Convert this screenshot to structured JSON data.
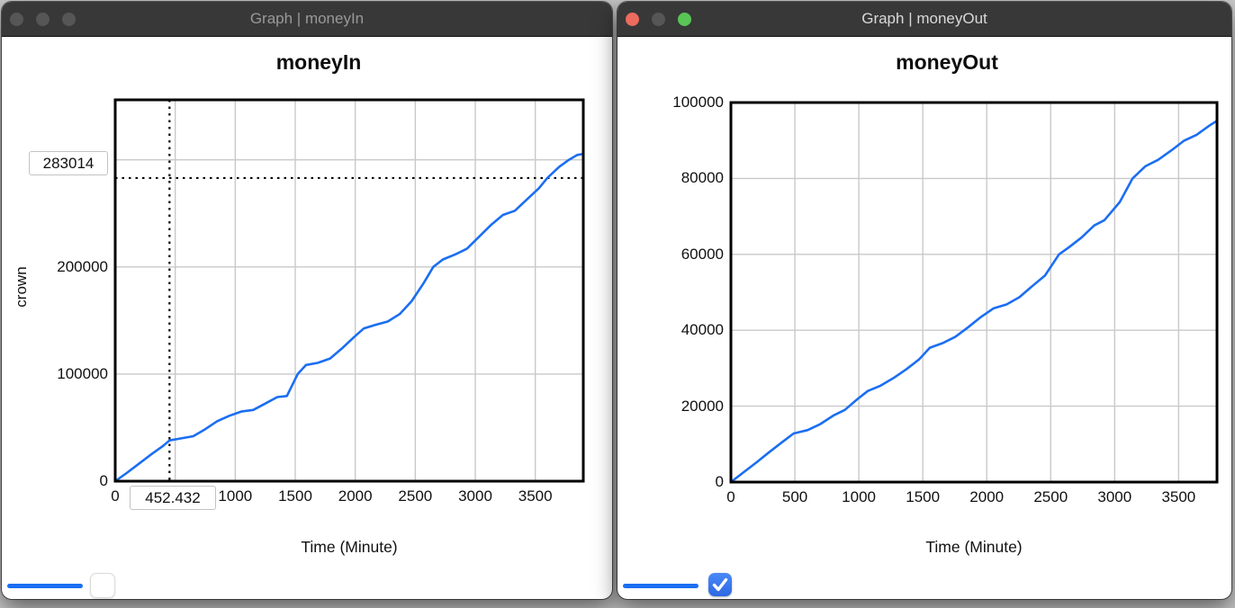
{
  "desktop": {
    "background": "#c9c9c9"
  },
  "accent_blue": "#1b6ef2",
  "checkbox_blue": "#3478f6",
  "windows": [
    {
      "title": "Graph | moneyIn",
      "active": false,
      "traffic_lights": [
        {
          "name": "close",
          "color": "#565656"
        },
        {
          "name": "minimize",
          "color": "#565656"
        },
        {
          "name": "zoom",
          "color": "#565656"
        }
      ],
      "readouts": {
        "y_value": "283014",
        "x_value": "452.432"
      },
      "legend": {
        "series_color": "#1b6ef2",
        "checkbox_checked": false
      },
      "chart_data": {
        "type": "line",
        "title": "moneyIn",
        "xlabel": "Time (Minute)",
        "ylabel": "crown",
        "xlim": [
          0,
          3900
        ],
        "ylim": [
          0,
          356000
        ],
        "grid": true,
        "legend_position": "bottom-left",
        "x_gridlines": [
          500,
          1000,
          1500,
          2000,
          2500,
          3000,
          3500
        ],
        "y_gridlines": [
          100000,
          200000,
          300000
        ],
        "x_ticks": [
          {
            "v": 0,
            "label": "0"
          },
          {
            "v": 1000,
            "label": "1000"
          },
          {
            "v": 1500,
            "label": "1500"
          },
          {
            "v": 2000,
            "label": "2000"
          },
          {
            "v": 2500,
            "label": "2500"
          },
          {
            "v": 3000,
            "label": "3000"
          },
          {
            "v": 3500,
            "label": "3500"
          }
        ],
        "y_ticks": [
          {
            "v": 0,
            "label": "0"
          },
          {
            "v": 100000,
            "label": "100000"
          },
          {
            "v": 200000,
            "label": "200000"
          }
        ],
        "crosshair": {
          "x": 452.432,
          "y": 283014
        },
        "series": [
          {
            "name": "moneyIn",
            "color": "#1b6ef2",
            "points": [
              [
                0,
                0
              ],
              [
                100,
                8000
              ],
              [
                200,
                16500
              ],
              [
                300,
                25000
              ],
              [
                400,
                33000
              ],
              [
                452,
                38000
              ],
              [
                550,
                40000
              ],
              [
                650,
                42000
              ],
              [
                750,
                48500
              ],
              [
                850,
                56000
              ],
              [
                950,
                61000
              ],
              [
                1050,
                65000
              ],
              [
                1150,
                66500
              ],
              [
                1250,
                72500
              ],
              [
                1350,
                78500
              ],
              [
                1430,
                79500
              ],
              [
                1520,
                100000
              ],
              [
                1590,
                108500
              ],
              [
                1690,
                110500
              ],
              [
                1790,
                114500
              ],
              [
                1890,
                124000
              ],
              [
                1990,
                134500
              ],
              [
                2070,
                142500
              ],
              [
                2170,
                146000
              ],
              [
                2270,
                149000
              ],
              [
                2370,
                156000
              ],
              [
                2470,
                168000
              ],
              [
                2570,
                185000
              ],
              [
                2650,
                200000
              ],
              [
                2730,
                207000
              ],
              [
                2830,
                211500
              ],
              [
                2930,
                217000
              ],
              [
                3030,
                228000
              ],
              [
                3130,
                239000
              ],
              [
                3230,
                248500
              ],
              [
                3330,
                252500
              ],
              [
                3430,
                263000
              ],
              [
                3530,
                273500
              ],
              [
                3600,
                283014
              ],
              [
                3700,
                293500
              ],
              [
                3780,
                300000
              ],
              [
                3850,
                304500
              ],
              [
                3900,
                305500
              ]
            ]
          }
        ]
      }
    },
    {
      "title": "Graph | moneyOut",
      "active": true,
      "traffic_lights": [
        {
          "name": "close",
          "color": "#ed6a5e"
        },
        {
          "name": "minimize",
          "color": "#565656"
        },
        {
          "name": "zoom",
          "color": "#58c556"
        }
      ],
      "legend": {
        "series_color": "#1b6ef2",
        "checkbox_checked": true,
        "checkbox_icon": "checkmark"
      },
      "chart_data": {
        "type": "line",
        "title": "moneyOut",
        "xlabel": "Time (Minute)",
        "ylabel": "",
        "xlim": [
          0,
          3800
        ],
        "ylim": [
          0,
          100000
        ],
        "grid": true,
        "legend_position": "bottom-left",
        "x_gridlines": [
          500,
          1000,
          1500,
          2000,
          2500,
          3000,
          3500
        ],
        "y_gridlines": [
          20000,
          40000,
          60000,
          80000
        ],
        "x_ticks": [
          {
            "v": 0,
            "label": "0"
          },
          {
            "v": 500,
            "label": "500"
          },
          {
            "v": 1000,
            "label": "1000"
          },
          {
            "v": 1500,
            "label": "1500"
          },
          {
            "v": 2000,
            "label": "2000"
          },
          {
            "v": 2500,
            "label": "2500"
          },
          {
            "v": 3000,
            "label": "3000"
          },
          {
            "v": 3500,
            "label": "3500"
          }
        ],
        "y_ticks": [
          {
            "v": 0,
            "label": "0"
          },
          {
            "v": 20000,
            "label": "20000"
          },
          {
            "v": 40000,
            "label": "40000"
          },
          {
            "v": 60000,
            "label": "60000"
          },
          {
            "v": 80000,
            "label": "80000"
          },
          {
            "v": 100000,
            "label": "100000"
          }
        ],
        "series": [
          {
            "name": "moneyOut",
            "color": "#1b6ef2",
            "points": [
              [
                0,
                0
              ],
              [
                100,
                2600
              ],
              [
                200,
                5200
              ],
              [
                300,
                7900
              ],
              [
                400,
                10500
              ],
              [
                490,
                12800
              ],
              [
                600,
                13700
              ],
              [
                700,
                15300
              ],
              [
                800,
                17500
              ],
              [
                890,
                19000
              ],
              [
                990,
                21900
              ],
              [
                1070,
                24000
              ],
              [
                1170,
                25400
              ],
              [
                1270,
                27400
              ],
              [
                1370,
                29700
              ],
              [
                1470,
                32300
              ],
              [
                1555,
                35400
              ],
              [
                1655,
                36600
              ],
              [
                1755,
                38300
              ],
              [
                1855,
                40800
              ],
              [
                1955,
                43500
              ],
              [
                2055,
                45800
              ],
              [
                2155,
                46800
              ],
              [
                2255,
                48700
              ],
              [
                2355,
                51600
              ],
              [
                2455,
                54400
              ],
              [
                2565,
                60000
              ],
              [
                2640,
                61800
              ],
              [
                2740,
                64400
              ],
              [
                2840,
                67600
              ],
              [
                2920,
                69000
              ],
              [
                3040,
                73800
              ],
              [
                3140,
                80000
              ],
              [
                3240,
                83200
              ],
              [
                3340,
                84900
              ],
              [
                3440,
                87300
              ],
              [
                3540,
                89900
              ],
              [
                3640,
                91500
              ],
              [
                3740,
                93900
              ],
              [
                3800,
                95200
              ]
            ]
          }
        ]
      }
    }
  ]
}
